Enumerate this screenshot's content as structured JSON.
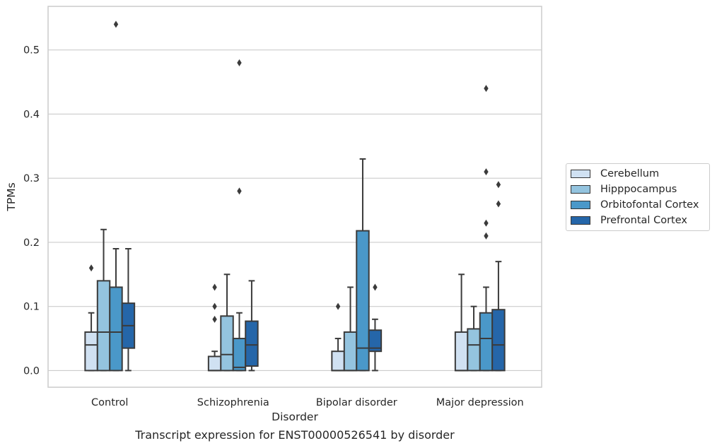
{
  "caption": "Transcript expression for ENST00000526541 by disorder",
  "chart_data": {
    "type": "boxplot",
    "xlabel": "Disorder",
    "ylabel": "TPMs",
    "ylim": [
      -0.026,
      0.568
    ],
    "yticks": [
      "0.0",
      "0.1",
      "0.2",
      "0.3",
      "0.4",
      "0.5"
    ],
    "categories": [
      "Control",
      "Schizophrenia",
      "Bipolar disorder",
      "Major depression"
    ],
    "grid": "horizontal",
    "legend_position": "right",
    "series": [
      {
        "name": "Cerebellum",
        "color": "#d0e1f2",
        "boxes": [
          {
            "whislo": 0.0,
            "q1": 0.0,
            "med": 0.04,
            "q3": 0.06,
            "whishi": 0.09,
            "fliers": [
              0.16
            ]
          },
          {
            "whislo": 0.0,
            "q1": 0.0,
            "med": 0.0,
            "q3": 0.022,
            "whishi": 0.03,
            "fliers": [
              0.08,
              0.1,
              0.13
            ]
          },
          {
            "whislo": 0.0,
            "q1": 0.0,
            "med": 0.0,
            "q3": 0.03,
            "whishi": 0.05,
            "fliers": [
              0.1
            ]
          },
          {
            "whislo": 0.0,
            "q1": 0.0,
            "med": 0.0,
            "q3": 0.06,
            "whishi": 0.15,
            "fliers": []
          }
        ]
      },
      {
        "name": "Hipppocampus",
        "color": "#94c4df",
        "boxes": [
          {
            "whislo": 0.0,
            "q1": 0.0,
            "med": 0.06,
            "q3": 0.14,
            "whishi": 0.22,
            "fliers": []
          },
          {
            "whislo": 0.0,
            "q1": 0.0,
            "med": 0.025,
            "q3": 0.085,
            "whishi": 0.15,
            "fliers": []
          },
          {
            "whislo": 0.0,
            "q1": 0.0,
            "med": 0.0,
            "q3": 0.06,
            "whishi": 0.13,
            "fliers": []
          },
          {
            "whislo": 0.0,
            "q1": 0.0,
            "med": 0.04,
            "q3": 0.065,
            "whishi": 0.1,
            "fliers": []
          }
        ]
      },
      {
        "name": "Orbitofontal Cortex",
        "color": "#4a98c9",
        "boxes": [
          {
            "whislo": 0.0,
            "q1": 0.0,
            "med": 0.06,
            "q3": 0.13,
            "whishi": 0.19,
            "fliers": [
              0.54
            ]
          },
          {
            "whislo": 0.0,
            "q1": 0.0,
            "med": 0.005,
            "q3": 0.05,
            "whishi": 0.09,
            "fliers": [
              0.28,
              0.48
            ]
          },
          {
            "whislo": 0.0,
            "q1": 0.0,
            "med": 0.035,
            "q3": 0.218,
            "whishi": 0.33,
            "fliers": []
          },
          {
            "whislo": 0.0,
            "q1": 0.0,
            "med": 0.05,
            "q3": 0.09,
            "whishi": 0.13,
            "fliers": [
              0.21,
              0.23,
              0.31,
              0.44
            ]
          }
        ]
      },
      {
        "name": "Prefrontal Cortex",
        "color": "#2566a9",
        "boxes": [
          {
            "whislo": 0.0,
            "q1": 0.035,
            "med": 0.07,
            "q3": 0.105,
            "whishi": 0.19,
            "fliers": []
          },
          {
            "whislo": 0.0,
            "q1": 0.007,
            "med": 0.04,
            "q3": 0.077,
            "whishi": 0.14,
            "fliers": []
          },
          {
            "whislo": 0.0,
            "q1": 0.03,
            "med": 0.035,
            "q3": 0.063,
            "whishi": 0.08,
            "fliers": [
              0.13
            ]
          },
          {
            "whislo": 0.0,
            "q1": 0.0,
            "med": 0.04,
            "q3": 0.095,
            "whishi": 0.17,
            "fliers": [
              0.26,
              0.29
            ]
          }
        ]
      }
    ]
  }
}
